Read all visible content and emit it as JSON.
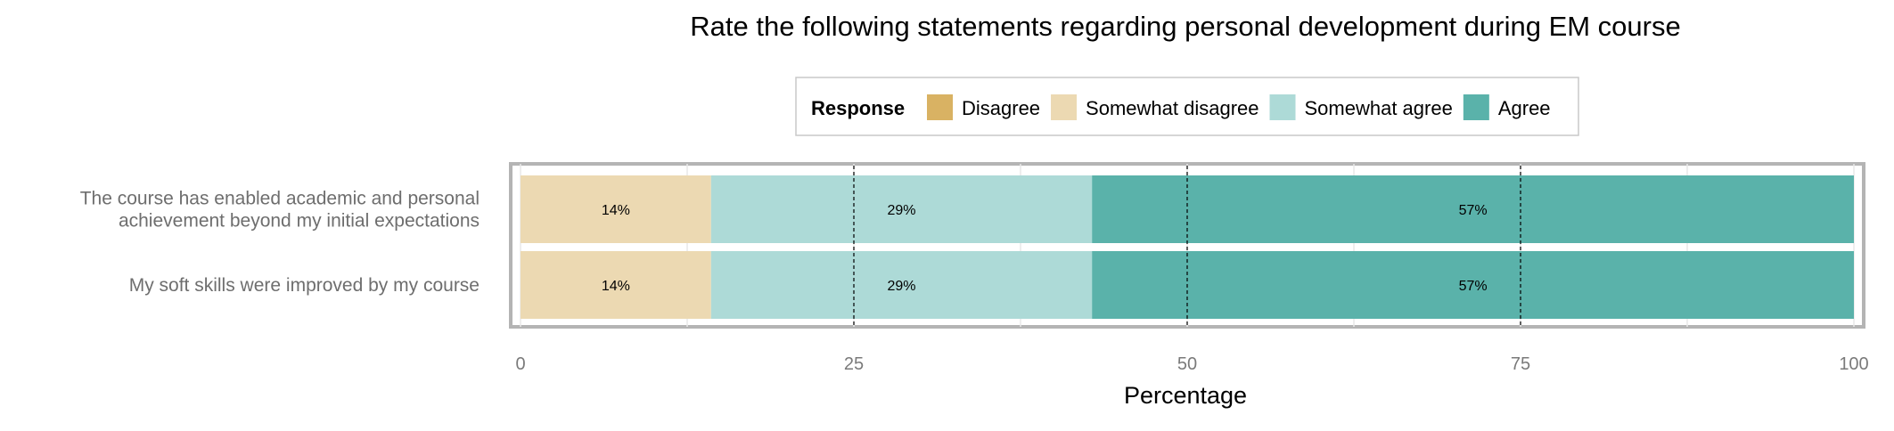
{
  "chart_data": {
    "type": "bar",
    "orientation": "horizontal",
    "stacked": true,
    "title": "Rate the following statements regarding personal development during EM course",
    "xlabel": "Percentage",
    "ylabel": "",
    "xlim": [
      0,
      100
    ],
    "xticks": [
      0,
      25,
      50,
      75,
      100
    ],
    "reference_lines": [
      25,
      50,
      75
    ],
    "legend": {
      "title": "Response",
      "position": "top",
      "entries": [
        {
          "name": "Disagree",
          "color": "#D9B263"
        },
        {
          "name": "Somewhat disagree",
          "color": "#ECD9B2"
        },
        {
          "name": "Somewhat agree",
          "color": "#ADDAD7"
        },
        {
          "name": "Agree",
          "color": "#5AB2AA"
        }
      ]
    },
    "categories": [
      [
        "The course has enabled academic and personal",
        "achievement beyond my initial expectations"
      ],
      [
        "My soft skills were improved by my course"
      ]
    ],
    "series": [
      {
        "name": "Disagree",
        "color": "#D9B263",
        "values": [
          0,
          0
        ],
        "labels": [
          "",
          ""
        ]
      },
      {
        "name": "Somewhat disagree",
        "color": "#ECD9B2",
        "values": [
          14.29,
          14.29
        ],
        "labels": [
          "14%",
          "14%"
        ]
      },
      {
        "name": "Somewhat agree",
        "color": "#ADDAD7",
        "values": [
          28.57,
          28.57
        ],
        "labels": [
          "29%",
          "29%"
        ]
      },
      {
        "name": "Agree",
        "color": "#5AB2AA",
        "values": [
          57.14,
          57.14
        ],
        "labels": [
          "57%",
          "57%"
        ]
      }
    ]
  }
}
